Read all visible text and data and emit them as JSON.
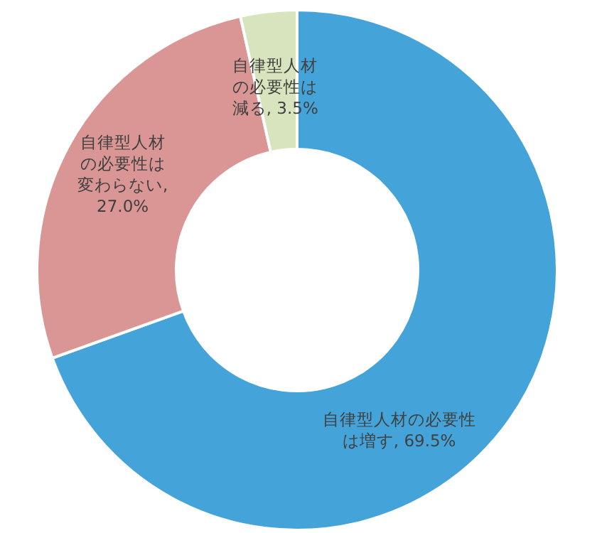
{
  "chart_data": {
    "type": "donut",
    "categories": [
      "自律型人材の必要性は増す",
      "自律型人材の必要性は変わらない",
      "自律型人材の必要性は減る"
    ],
    "values": [
      69.5,
      27.0,
      3.5
    ],
    "colors": [
      "#44a3d9",
      "#d99694",
      "#d7e4bd"
    ],
    "value_labels": [
      ", 69.5%",
      ", 27.0%",
      ", 3.5%"
    ],
    "legend": false
  }
}
